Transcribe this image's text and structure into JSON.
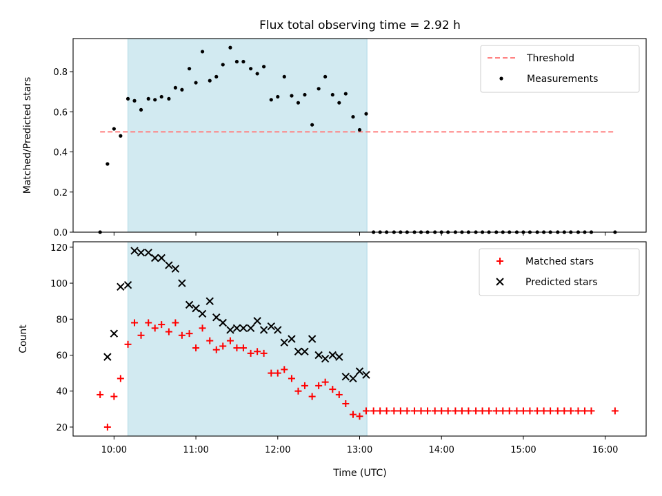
{
  "chart_data": {
    "title": "Flux total observing time = 2.92 h",
    "xlabel": "Time (UTC)",
    "x_unit": "hours (UTC)",
    "xlim": [
      9.5,
      16.5
    ],
    "x_ticks": [
      {
        "value": 10,
        "label": "10:00"
      },
      {
        "value": 11,
        "label": "11:00"
      },
      {
        "value": 12,
        "label": "12:00"
      },
      {
        "value": 13,
        "label": "13:00"
      },
      {
        "value": 14,
        "label": "14:00"
      },
      {
        "value": 15,
        "label": "15:00"
      },
      {
        "value": 16,
        "label": "16:00"
      }
    ],
    "highlight_span": {
      "x_start": 10.17,
      "x_end": 13.09,
      "color": "#add8e6"
    },
    "panels": [
      {
        "type": "scatter",
        "ylabel": "Matched/Predicted stars",
        "ylim": [
          0,
          0.965
        ],
        "y_ticks": [
          0.0,
          0.2,
          0.4,
          0.6,
          0.8
        ],
        "y_tick_labels": [
          "0.0",
          "0.2",
          "0.4",
          "0.6",
          "0.8"
        ],
        "legend_position": "top-right",
        "series": [
          {
            "name": "Threshold",
            "kind": "dashed-line",
            "color": "#ff7f7f",
            "x": [
              9.83,
              16.12
            ],
            "y": [
              0.5,
              0.5
            ]
          },
          {
            "name": "Measurements",
            "kind": "dot",
            "color": "#000000",
            "x": [
              9.83,
              9.92,
              10.0,
              10.08,
              10.17,
              10.25,
              10.33,
              10.42,
              10.5,
              10.58,
              10.67,
              10.75,
              10.83,
              10.92,
              11.0,
              11.08,
              11.17,
              11.25,
              11.33,
              11.42,
              11.5,
              11.58,
              11.67,
              11.75,
              11.83,
              11.92,
              12.0,
              12.08,
              12.17,
              12.25,
              12.33,
              12.42,
              12.5,
              12.58,
              12.67,
              12.75,
              12.83,
              12.92,
              13.0,
              13.08,
              13.17,
              13.25,
              13.33,
              13.42,
              13.5,
              13.58,
              13.67,
              13.75,
              13.83,
              13.92,
              14.0,
              14.08,
              14.17,
              14.25,
              14.33,
              14.42,
              14.5,
              14.58,
              14.67,
              14.75,
              14.83,
              14.92,
              15.0,
              15.08,
              15.17,
              15.25,
              15.33,
              15.42,
              15.5,
              15.58,
              15.67,
              15.75,
              15.83,
              16.12
            ],
            "y": [
              0.0,
              0.34,
              0.515,
              0.48,
              0.665,
              0.655,
              0.61,
              0.665,
              0.66,
              0.675,
              0.665,
              0.72,
              0.71,
              0.815,
              0.745,
              0.9,
              0.755,
              0.775,
              0.835,
              0.92,
              0.85,
              0.85,
              0.815,
              0.79,
              0.825,
              0.66,
              0.675,
              0.775,
              0.68,
              0.645,
              0.685,
              0.535,
              0.715,
              0.775,
              0.685,
              0.645,
              0.69,
              0.575,
              0.51,
              0.59,
              0.0,
              0.0,
              0.0,
              0.0,
              0.0,
              0.0,
              0.0,
              0.0,
              0.0,
              0.0,
              0.0,
              0.0,
              0.0,
              0.0,
              0.0,
              0.0,
              0.0,
              0.0,
              0.0,
              0.0,
              0.0,
              0.0,
              0.0,
              0.0,
              0.0,
              0.0,
              0.0,
              0.0,
              0.0,
              0.0,
              0.0,
              0.0,
              0.0,
              0.0
            ]
          }
        ]
      },
      {
        "type": "scatter",
        "ylabel": "Count",
        "ylim": [
          15,
          123
        ],
        "y_ticks": [
          20,
          40,
          60,
          80,
          100,
          120
        ],
        "y_tick_labels": [
          "20",
          "40",
          "60",
          "80",
          "100",
          "120"
        ],
        "legend_position": "top-right",
        "series": [
          {
            "name": "Matched stars",
            "kind": "plus",
            "color": "#ff0000",
            "x": [
              9.83,
              9.92,
              10.0,
              10.08,
              10.17,
              10.25,
              10.33,
              10.42,
              10.5,
              10.58,
              10.67,
              10.75,
              10.83,
              10.92,
              11.0,
              11.08,
              11.17,
              11.25,
              11.33,
              11.42,
              11.5,
              11.58,
              11.67,
              11.75,
              11.83,
              11.92,
              12.0,
              12.08,
              12.17,
              12.25,
              12.33,
              12.42,
              12.5,
              12.58,
              12.67,
              12.75,
              12.83,
              12.92,
              13.0,
              13.08,
              13.17,
              13.25,
              13.33,
              13.42,
              13.5,
              13.58,
              13.67,
              13.75,
              13.83,
              13.92,
              14.0,
              14.08,
              14.17,
              14.25,
              14.33,
              14.42,
              14.5,
              14.58,
              14.67,
              14.75,
              14.83,
              14.92,
              15.0,
              15.08,
              15.17,
              15.25,
              15.33,
              15.42,
              15.5,
              15.58,
              15.67,
              15.75,
              15.83,
              16.12
            ],
            "y": [
              38,
              20,
              37,
              47,
              66,
              78,
              71,
              78,
              75,
              77,
              73,
              78,
              71,
              72,
              64,
              75,
              68,
              63,
              65,
              68,
              64,
              64,
              61,
              62,
              61,
              50,
              50,
              52,
              47,
              40,
              43,
              37,
              43,
              45,
              41,
              38,
              33,
              27,
              26,
              29,
              29,
              29,
              29,
              29,
              29,
              29,
              29,
              29,
              29,
              29,
              29,
              29,
              29,
              29,
              29,
              29,
              29,
              29,
              29,
              29,
              29,
              29,
              29,
              29,
              29,
              29,
              29,
              29,
              29,
              29,
              29,
              29,
              29,
              29
            ]
          },
          {
            "name": "Predicted stars",
            "kind": "cross",
            "color": "#000000",
            "x": [
              9.92,
              10.0,
              10.08,
              10.17,
              10.25,
              10.33,
              10.42,
              10.5,
              10.58,
              10.67,
              10.75,
              10.83,
              10.92,
              11.0,
              11.08,
              11.17,
              11.25,
              11.33,
              11.42,
              11.5,
              11.58,
              11.67,
              11.75,
              11.83,
              11.92,
              12.0,
              12.08,
              12.17,
              12.25,
              12.33,
              12.42,
              12.5,
              12.58,
              12.67,
              12.75,
              12.83,
              12.92,
              13.0,
              13.08
            ],
            "y": [
              59,
              72,
              98,
              99,
              118,
              117,
              117,
              114,
              114,
              110,
              108,
              100,
              88,
              86,
              83,
              90,
              81,
              78,
              74,
              75,
              75,
              75,
              79,
              74,
              76,
              74,
              67,
              69,
              62,
              62,
              69,
              60,
              58,
              60,
              59,
              48,
              47,
              51,
              49
            ]
          }
        ]
      }
    ]
  }
}
